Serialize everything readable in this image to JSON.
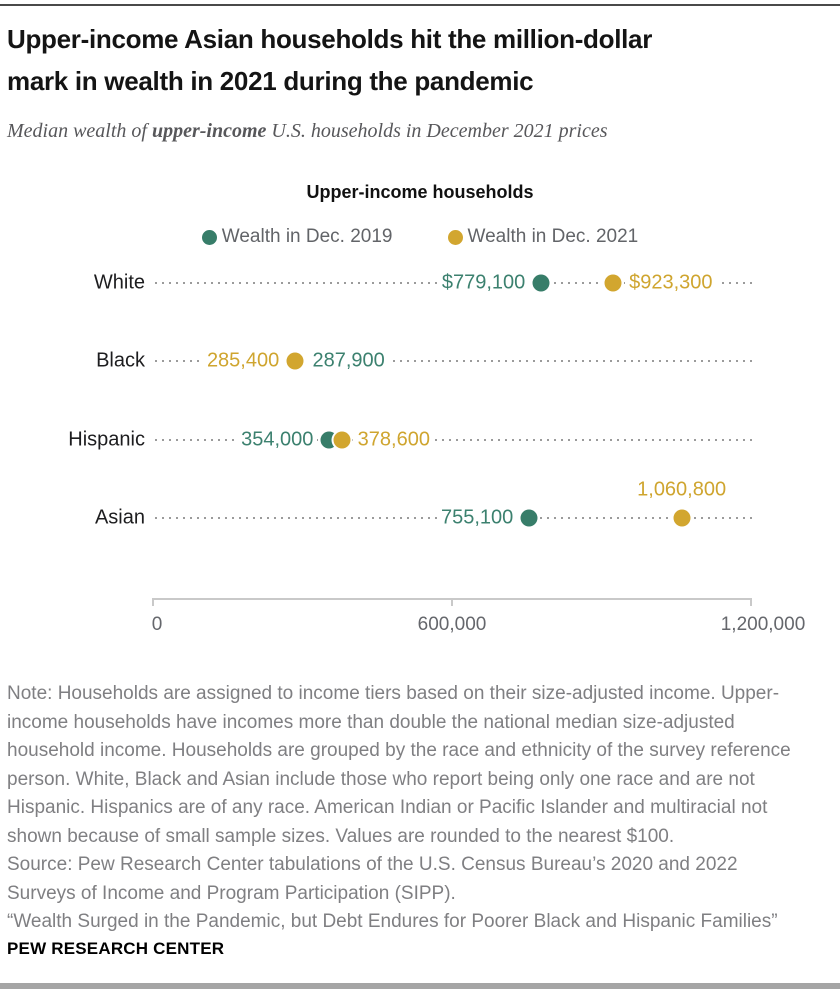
{
  "page": {
    "title_line1": "Upper-income Asian households hit the million-dollar",
    "title_line2": "mark in wealth in 2021 during the pandemic",
    "subtitle_prefix": "Median wealth of ",
    "subtitle_bold": "upper-income",
    "subtitle_suffix": " U.S. households in December 2021 prices",
    "footer": "PEW RESEARCH CENTER"
  },
  "colors": {
    "teal": "#377D69",
    "gold": "#D2A62F",
    "teal_text": "#3C816F",
    "gold_text": "#CFA52F",
    "axis": "#C9C9C9",
    "dotted_line": "#9B9B9B",
    "axis_text": "#65676C",
    "note_text": "#7F7F82"
  },
  "legend": {
    "items": [
      {
        "label": "Wealth in Dec. 2019",
        "color_key": "teal"
      },
      {
        "label": "Wealth in Dec. 2021",
        "color_key": "gold"
      }
    ]
  },
  "chart_data": {
    "type": "dumbbell-dot-plot",
    "title": "Upper-income households",
    "categories": [
      "White",
      "Black",
      "Hispanic",
      "Asian"
    ],
    "series": [
      {
        "name": "Wealth in Dec. 2019",
        "color": "#377D69",
        "values": [
          779100,
          287900,
          354000,
          755100
        ]
      },
      {
        "name": "Wealth in Dec. 2021",
        "color": "#D2A62F",
        "values": [
          923300,
          285400,
          378600,
          1060800
        ]
      }
    ],
    "rows": [
      {
        "category": "White",
        "v2019": 779100,
        "v2021": 923300,
        "label_2019": {
          "text": "$779,100",
          "pos": "left-of-2019"
        },
        "label_2021": {
          "text": "$923,300",
          "pos": "right-of-2021"
        }
      },
      {
        "category": "Black",
        "v2019": 287900,
        "v2021": 285400,
        "label_2021": {
          "text": "285,400",
          "pos": "left-of-2021"
        },
        "label_2019": {
          "text": "287,900",
          "pos": "right-of-2019"
        }
      },
      {
        "category": "Hispanic",
        "v2019": 354000,
        "v2021": 378600,
        "label_2019": {
          "text": "354,000",
          "pos": "left-of-2019"
        },
        "label_2021": {
          "text": "378,600",
          "pos": "right-of-2021"
        }
      },
      {
        "category": "Asian",
        "v2019": 755100,
        "v2021": 1060800,
        "label_2019": {
          "text": "755,100",
          "pos": "left-of-2019"
        },
        "label_2021": {
          "text": "1,060,800",
          "pos": "above-2021"
        }
      }
    ],
    "xaxis": {
      "min": 0,
      "max": 1200000,
      "ticks": [
        {
          "value": 0,
          "label": "0"
        },
        {
          "value": 600000,
          "label": "600,000"
        },
        {
          "value": 1200000,
          "label": "1,200,000"
        }
      ]
    }
  },
  "notes": {
    "note_lines": [
      "Note: Households are assigned to income tiers based on their size-adjusted income. Upper-",
      "income households have incomes more than double the national median size-adjusted",
      "household income. Households are grouped by the race and ethnicity of the survey reference",
      "person. White, Black and Asian include those who report being only one race and are not",
      "Hispanic. Hispanics are of any race. American Indian or Pacific Islander and multiracial not",
      "shown because of small sample sizes. Values are rounded to the nearest $100."
    ],
    "source_lines": [
      "Source: Pew Research Center tabulations of the U.S. Census Bureau’s 2020 and 2022",
      "Surveys of Income and Program Participation (SIPP)."
    ],
    "quote": "“Wealth Surged in the Pandemic, but Debt Endures for Poorer Black and Hispanic Families”"
  }
}
